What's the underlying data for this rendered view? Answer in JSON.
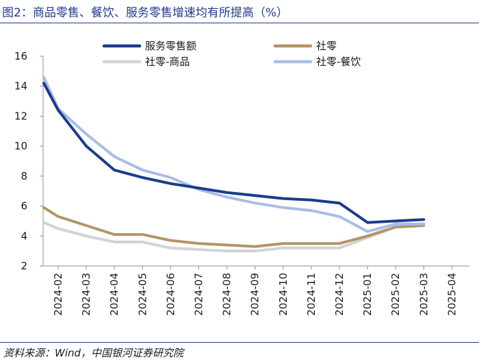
{
  "title": "图2：商品零售、餐饮、服务零售增速均有所提高（%）",
  "source": "资料来源：Wind，中国银河证券研究院",
  "chart_data": {
    "type": "line",
    "title": "图2：商品零售、餐饮、服务零售增速均有所提高（%）",
    "xlabel": "",
    "ylabel": "",
    "ylim": [
      2,
      16
    ],
    "yticks": [
      2,
      4,
      6,
      8,
      10,
      12,
      14,
      16
    ],
    "grid": false,
    "legend_position": "top",
    "categories": [
      "2024-02",
      "2024-03",
      "2024-04",
      "2024-05",
      "2024-06",
      "2024-07",
      "2024-08",
      "2024-09",
      "2024-10",
      "2024-11",
      "2024-12",
      "2025-01",
      "2025-02",
      "2025-03",
      "2025-04"
    ],
    "series": [
      {
        "name": "服务零售额",
        "color": "#1a3b8f",
        "values": [
          14.2,
          12.4,
          10.0,
          8.4,
          7.9,
          7.5,
          7.2,
          6.9,
          6.7,
          6.5,
          6.4,
          6.2,
          4.9,
          5.0,
          5.1
        ],
        "note": "first point plotted at 2024-01 position (Jan–Feb cumulative)"
      },
      {
        "name": "社零",
        "color": "#b49566",
        "values": [
          5.9,
          5.3,
          4.7,
          4.1,
          4.1,
          3.7,
          3.5,
          3.4,
          3.3,
          3.5,
          3.5,
          3.5,
          4.0,
          4.6,
          4.7
        ]
      },
      {
        "name": "社零-商品",
        "color": "#d3d3d3",
        "values": [
          4.9,
          4.5,
          4.0,
          3.6,
          3.6,
          3.2,
          3.1,
          3.0,
          3.0,
          3.2,
          3.2,
          3.2,
          3.9,
          4.6,
          4.7
        ]
      },
      {
        "name": "社零-餐饮",
        "color": "#a9bce6",
        "values": [
          14.6,
          12.5,
          10.8,
          9.3,
          8.4,
          7.9,
          7.1,
          6.6,
          6.2,
          5.9,
          5.7,
          5.3,
          4.3,
          4.8,
          4.8
        ]
      }
    ]
  }
}
